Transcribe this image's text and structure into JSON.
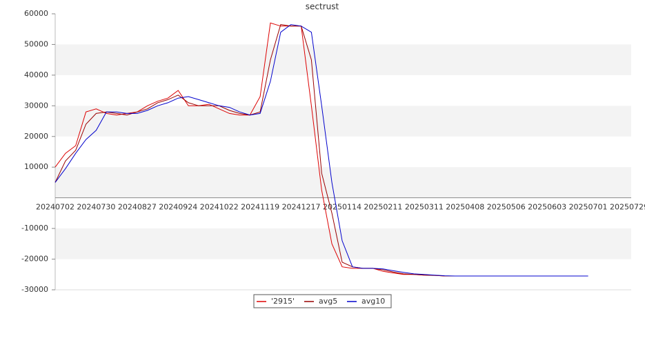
{
  "chart_data": {
    "type": "line",
    "title": "sectrust",
    "categories": [
      "20240702",
      null,
      null,
      null,
      "20240730",
      null,
      null,
      null,
      "20240827",
      null,
      null,
      null,
      "20240924",
      null,
      null,
      null,
      "20241022",
      null,
      null,
      null,
      "20241119",
      null,
      null,
      null,
      "20241217",
      null,
      null,
      null,
      "20250114",
      null,
      null,
      null,
      "20250211",
      null,
      null,
      null,
      "20250311",
      null,
      null,
      null,
      "20250408",
      null,
      null,
      null,
      "20250506",
      null,
      null,
      null,
      "20250603",
      null,
      null,
      null,
      "20250701",
      null,
      null,
      null,
      "20250729"
    ],
    "series": [
      {
        "name": "'2915'",
        "color": "#dd0000",
        "values": [
          10000,
          14500,
          17000,
          28000,
          29000,
          27500,
          27000,
          27500,
          28000,
          30000,
          31500,
          32500,
          35000,
          30000,
          30000,
          30500,
          29000,
          27500,
          27000,
          27000,
          33000,
          57000,
          56000,
          56000,
          56000,
          30000,
          2500,
          -15000,
          -22500,
          -23000,
          -23000,
          -23000,
          -24000,
          -24500,
          -25000,
          -25000,
          -25200,
          -25300,
          -25500,
          -25500,
          null,
          null,
          null,
          null,
          null,
          null,
          null,
          null,
          null,
          null,
          null,
          null,
          null,
          null,
          null,
          null,
          null
        ]
      },
      {
        "name": "avg5",
        "color": "#990000",
        "values": [
          5000,
          12000,
          15500,
          24000,
          27500,
          28000,
          27500,
          27000,
          28000,
          29000,
          31000,
          32000,
          33500,
          31000,
          30000,
          30000,
          30000,
          28500,
          27500,
          27000,
          28000,
          45000,
          56500,
          56000,
          56000,
          45000,
          8000,
          -5000,
          -21000,
          -22500,
          -23000,
          -23000,
          -23500,
          -24200,
          -24800,
          -25000,
          -25200,
          -25300,
          -25500,
          -25500,
          null,
          null,
          null,
          null,
          null,
          null,
          null,
          null,
          null,
          null,
          null,
          null,
          null,
          null,
          null,
          null,
          null
        ]
      },
      {
        "name": "avg10",
        "color": "#0000cc",
        "values": [
          5000,
          9500,
          14500,
          19000,
          22000,
          28000,
          28000,
          27500,
          27500,
          28500,
          30000,
          31000,
          32500,
          33000,
          32000,
          31000,
          30000,
          29500,
          28000,
          27000,
          27500,
          38000,
          54000,
          56500,
          56000,
          54000,
          30000,
          5000,
          -14000,
          -22500,
          -23000,
          -23000,
          -23200,
          -23800,
          -24300,
          -24800,
          -25000,
          -25200,
          -25400,
          -25500,
          -25500,
          -25500,
          -25500,
          -25500,
          -25500,
          -25500,
          -25500,
          -25500,
          -25500,
          -25500,
          -25500,
          -25500,
          -25500,
          null,
          null,
          null,
          null
        ]
      }
    ],
    "ylim": [
      -30000,
      60000
    ],
    "yticks": [
      -30000,
      -20000,
      -10000,
      10000,
      20000,
      30000,
      40000,
      50000,
      60000
    ],
    "grid": true,
    "legend": "bottom"
  }
}
